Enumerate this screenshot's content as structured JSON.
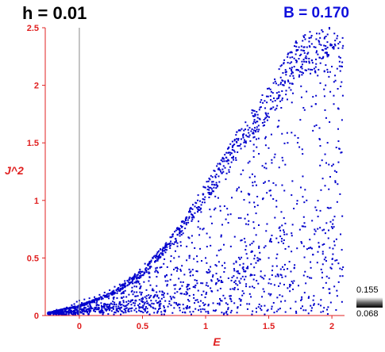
{
  "header": {
    "h_label": "h = 0.01",
    "b_label": "B = 0.170"
  },
  "colorbar": {
    "max_label": "0.155",
    "min_label": "0.068"
  },
  "chart_data": {
    "type": "scatter",
    "title": "",
    "xlabel": "E",
    "ylabel": "J^2",
    "xlim": [
      -0.27,
      2.1
    ],
    "ylim": [
      0,
      2.5
    ],
    "xticks": [
      0,
      0.5,
      1,
      1.5,
      2
    ],
    "xtick_labels": [
      "0",
      "0.5",
      "1",
      "1.5",
      "2"
    ],
    "yticks": [
      0,
      0.5,
      1,
      1.5,
      2,
      2.5
    ],
    "ytick_labels": [
      "0",
      "0.5",
      "1",
      "1.5",
      "2",
      "2.5"
    ],
    "grid": false,
    "vertical_line_x": 0,
    "colors": {
      "points": "#0000cc",
      "axes": "#e02020",
      "labels": "#1010dd"
    },
    "series": [
      {
        "description_region": "point cloud bounded above by envelope",
        "envelope": {
          "E": [
            -0.27,
            0,
            0.25,
            0.5,
            0.75,
            1.0,
            1.25,
            1.5,
            1.75,
            2.0
          ],
          "J2_max": [
            0.02,
            0.09,
            0.2,
            0.4,
            0.72,
            1.15,
            1.6,
            2.0,
            2.45,
            2.5
          ]
        },
        "points": [
          [
            -0.25,
            0.02
          ],
          [
            -0.22,
            0.03
          ],
          [
            -0.2,
            0.04
          ],
          [
            -0.18,
            0.05
          ],
          [
            -0.15,
            0.04
          ],
          [
            -0.12,
            0.06
          ],
          [
            -0.1,
            0.07
          ],
          [
            -0.08,
            0.05
          ],
          [
            -0.06,
            0.09
          ],
          [
            -0.04,
            0.1
          ],
          [
            -0.02,
            0.12
          ],
          [
            0.0,
            0.13
          ],
          [
            0.02,
            0.11
          ],
          [
            0.04,
            0.14
          ],
          [
            0.06,
            0.1
          ],
          [
            0.08,
            0.15
          ],
          [
            0.1,
            0.13
          ],
          [
            0.12,
            0.16
          ],
          [
            0.14,
            0.12
          ],
          [
            0.16,
            0.18
          ],
          [
            0.18,
            0.15
          ],
          [
            0.2,
            0.2
          ],
          [
            0.22,
            0.16
          ],
          [
            0.24,
            0.22
          ],
          [
            0.26,
            0.18
          ],
          [
            0.28,
            0.25
          ],
          [
            0.3,
            0.21
          ],
          [
            0.32,
            0.27
          ],
          [
            0.34,
            0.23
          ],
          [
            0.36,
            0.3
          ],
          [
            0.38,
            0.26
          ],
          [
            0.4,
            0.33
          ],
          [
            0.42,
            0.28
          ],
          [
            0.44,
            0.36
          ],
          [
            0.46,
            0.3
          ],
          [
            0.48,
            0.4
          ],
          [
            0.5,
            0.35
          ],
          [
            0.52,
            0.45
          ],
          [
            0.55,
            0.3
          ],
          [
            0.58,
            0.5
          ],
          [
            0.6,
            0.38
          ],
          [
            0.62,
            0.55
          ],
          [
            0.65,
            0.42
          ],
          [
            0.68,
            0.6
          ],
          [
            0.7,
            0.3
          ],
          [
            0.72,
            0.68
          ],
          [
            0.75,
            0.5
          ],
          [
            0.78,
            0.75
          ],
          [
            0.8,
            0.4
          ],
          [
            0.82,
            0.82
          ],
          [
            0.85,
            0.6
          ],
          [
            0.88,
            0.9
          ],
          [
            0.9,
            0.35
          ],
          [
            0.92,
            0.98
          ],
          [
            0.95,
            0.7
          ],
          [
            0.98,
            1.05
          ],
          [
            1.0,
            0.5
          ],
          [
            1.02,
            1.12
          ],
          [
            1.05,
            0.8
          ],
          [
            1.08,
            1.2
          ],
          [
            1.1,
            0.3
          ],
          [
            1.12,
            1.25
          ],
          [
            1.15,
            0.95
          ],
          [
            1.18,
            1.32
          ],
          [
            1.2,
            0.6
          ],
          [
            1.22,
            1.38
          ],
          [
            1.25,
            1.1
          ],
          [
            1.28,
            1.45
          ],
          [
            1.3,
            0.4
          ],
          [
            1.32,
            1.5
          ],
          [
            1.35,
            1.2
          ],
          [
            1.38,
            1.58
          ],
          [
            1.4,
            0.7
          ],
          [
            1.42,
            1.65
          ],
          [
            1.45,
            1.3
          ],
          [
            1.48,
            1.72
          ],
          [
            1.5,
            0.5
          ],
          [
            1.52,
            1.8
          ],
          [
            1.55,
            1.4
          ],
          [
            1.58,
            1.9
          ],
          [
            1.6,
            0.9
          ],
          [
            1.62,
            2.0
          ],
          [
            1.65,
            1.5
          ],
          [
            1.68,
            2.1
          ],
          [
            1.7,
            0.3
          ],
          [
            1.72,
            2.2
          ],
          [
            1.75,
            1.7
          ],
          [
            1.78,
            2.3
          ],
          [
            1.8,
            1.0
          ],
          [
            1.82,
            2.38
          ],
          [
            1.85,
            1.9
          ],
          [
            1.88,
            2.45
          ],
          [
            1.9,
            0.6
          ],
          [
            1.92,
            2.48
          ],
          [
            1.95,
            2.0
          ],
          [
            1.98,
            2.5
          ],
          [
            2.0,
            1.3
          ],
          [
            2.02,
            2.45
          ],
          [
            2.05,
            1.8
          ],
          [
            2.08,
            0.4
          ]
        ]
      }
    ]
  }
}
